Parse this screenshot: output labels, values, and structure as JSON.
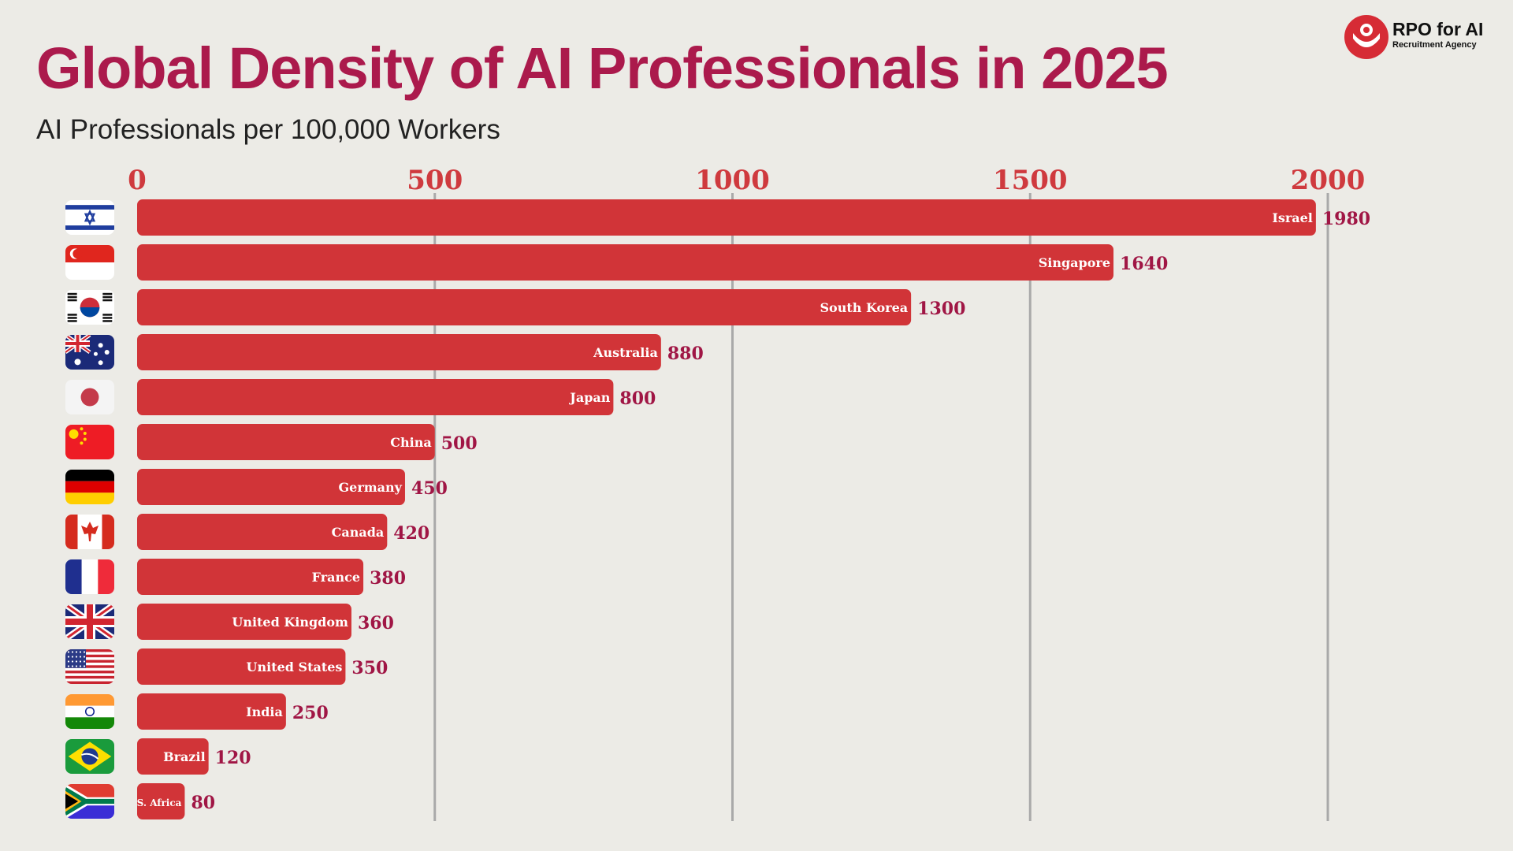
{
  "header": {
    "title": "Global Density of AI Professionals in 2025",
    "subtitle": "AI Professionals per 100,000 Workers"
  },
  "logo": {
    "name": "RPO for AI",
    "tagline": "Recruitment Agency",
    "icon": "rpo-logo-icon",
    "color": "#d62b35"
  },
  "colors": {
    "bar": "#d13438",
    "tick": "#cf3a3e",
    "value": "#a01645",
    "gridline": "#a9a9a9",
    "title": "#ab1a4c"
  },
  "chart_data": {
    "type": "bar",
    "orientation": "horizontal",
    "title": "Global Density of AI Professionals in 2025",
    "subtitle": "AI Professionals per 100,000 Workers",
    "xlim": [
      0,
      2000
    ],
    "ticks": [
      "0",
      "500",
      "1000",
      "1500",
      "2000"
    ],
    "tick_values": [
      0,
      500,
      1000,
      1500,
      2000
    ],
    "grid": true,
    "axis_position": "top",
    "categories": [
      "Israel",
      "Singapore",
      "South Korea",
      "Australia",
      "Japan",
      "China",
      "Germany",
      "Canada",
      "France",
      "United Kingdom",
      "United States",
      "India",
      "Brazil",
      "S. Africa"
    ],
    "values": [
      1980,
      1640,
      1300,
      880,
      800,
      500,
      450,
      420,
      380,
      360,
      350,
      250,
      120,
      80
    ],
    "value_labels": [
      "1980",
      "1640",
      "1300",
      "880",
      "800",
      "500",
      "450",
      "420",
      "380",
      "360",
      "350",
      "250",
      "120",
      "80"
    ],
    "flags": [
      "israel-flag-icon",
      "singapore-flag-icon",
      "south-korea-flag-icon",
      "australia-flag-icon",
      "japan-flag-icon",
      "china-flag-icon",
      "germany-flag-icon",
      "canada-flag-icon",
      "france-flag-icon",
      "uk-flag-icon",
      "usa-flag-icon",
      "india-flag-icon",
      "brazil-flag-icon",
      "south-africa-flag-icon"
    ]
  }
}
